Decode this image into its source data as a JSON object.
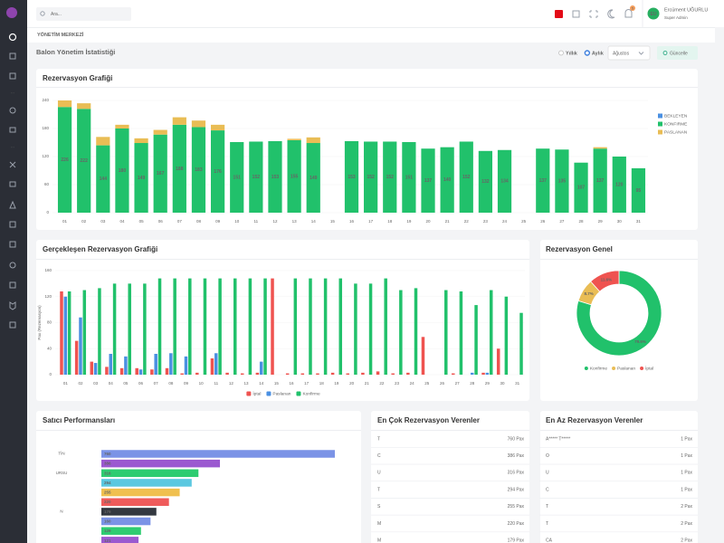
{
  "header": {
    "search_placeholder": "Ara...",
    "notification_count": 5,
    "user_initials": "EU",
    "user_name": "Ercüment UĞURLU",
    "user_role": "Super Admin"
  },
  "breadcrumb": "YÖNETİM MERKEZİ",
  "page_title": "Balon Yönetim İstatistiği",
  "filters": {
    "options": [
      "Yıllık",
      "Aylık"
    ],
    "selected_index": 1,
    "month": "Ağustos",
    "button": "Güncelle"
  },
  "chart_data": [
    {
      "type": "bar",
      "stacked": true,
      "title": "Rezervasyon Grafiği",
      "grid": true,
      "legend": "right",
      "categories": [
        "01",
        "02",
        "03",
        "04",
        "05",
        "06",
        "07",
        "08",
        "09",
        "10",
        "11",
        "12",
        "13",
        "14",
        "15",
        "16",
        "17",
        "18",
        "19",
        "20",
        "21",
        "22",
        "23",
        "24",
        "25",
        "26",
        "27",
        "28",
        "29",
        "30",
        "31"
      ],
      "ylim": [
        0,
        240
      ],
      "yticks": [
        0,
        60,
        120,
        180,
        240
      ],
      "series": [
        {
          "name": "BEKLEYEN",
          "color": "#4a90e2",
          "values": [
            0,
            0,
            0,
            0,
            0,
            0,
            0,
            0,
            0,
            0,
            0,
            0,
            0,
            0,
            0,
            0,
            0,
            0,
            0,
            0,
            0,
            0,
            0,
            0,
            0,
            0,
            0,
            0,
            0,
            0,
            0
          ]
        },
        {
          "name": "KONFIRME",
          "color": "#21c16b",
          "show_labels": true,
          "values": [
            226,
            222,
            144,
            180,
            149,
            167,
            188,
            183,
            176,
            151,
            152,
            153,
            155,
            149,
            null,
            153,
            152,
            152,
            151,
            137,
            140,
            152,
            132,
            134,
            null,
            137,
            135,
            107,
            137,
            120,
            95
          ]
        },
        {
          "name": "PASLANAN",
          "color": "#e9bd55",
          "values": [
            14,
            12,
            18,
            8,
            10,
            10,
            16,
            14,
            12,
            0,
            0,
            0,
            3,
            12,
            0,
            0,
            0,
            0,
            0,
            0,
            0,
            0,
            0,
            0,
            0,
            0,
            0,
            0,
            3,
            0,
            0
          ]
        }
      ]
    },
    {
      "type": "bar",
      "stacked": false,
      "title": "Gerçekleşen Rezervasyon Grafiği",
      "y_label": "Pax (Rezervasyon)",
      "grid": true,
      "legend": "bottom",
      "categories": [
        "01",
        "02",
        "03",
        "04",
        "05",
        "06",
        "07",
        "08",
        "09",
        "10",
        "11",
        "12",
        "13",
        "14",
        "15",
        "16",
        "17",
        "18",
        "19",
        "20",
        "21",
        "22",
        "23",
        "24",
        "25",
        "26",
        "27",
        "28",
        "29",
        "30",
        "31"
      ],
      "ylim": [
        0,
        160
      ],
      "yticks": [
        0,
        40,
        80,
        120,
        160
      ],
      "series": [
        {
          "name": "İptal",
          "color": "#ef5350",
          "values": [
            128,
            52,
            20,
            12,
            10,
            10,
            8,
            10,
            2,
            3,
            25,
            3,
            2,
            3,
            148,
            2,
            2,
            2,
            3,
            2,
            3,
            5,
            2,
            3,
            58,
            0,
            2,
            0,
            3,
            40,
            0
          ]
        },
        {
          "name": "Paslanan",
          "color": "#4a90e2",
          "values": [
            120,
            88,
            18,
            32,
            28,
            8,
            32,
            33,
            28,
            0,
            33,
            0,
            0,
            20,
            0,
            0,
            0,
            0,
            0,
            0,
            0,
            0,
            0,
            0,
            0,
            0,
            0,
            3,
            3,
            0,
            0
          ]
        },
        {
          "name": "Konfirme",
          "color": "#21c16b",
          "values": [
            128,
            130,
            133,
            140,
            140,
            140,
            148,
            148,
            148,
            148,
            148,
            148,
            148,
            148,
            0,
            148,
            148,
            148,
            148,
            140,
            140,
            148,
            130,
            133,
            0,
            130,
            128,
            107,
            130,
            120,
            95
          ]
        }
      ]
    },
    {
      "type": "donut",
      "title": "Rezervasyon Genel",
      "legend": "bottom",
      "categories": [
        "Konfirme",
        "Paslanan",
        "İptal"
      ],
      "values": [
        79.6,
        8.7,
        11.6
      ],
      "value_labels": [
        "79.6%",
        "8.7%",
        "11.6%"
      ],
      "colors": [
        "#21c16b",
        "#e9bd55",
        "#ef5350"
      ]
    },
    {
      "type": "barh",
      "title": "Satıcı Performansları",
      "categories": [
        "TİN",
        null,
        "URSU",
        null,
        null,
        null,
        "N",
        null,
        null,
        null
      ],
      "values": [
        760,
        386,
        316,
        294,
        255,
        220,
        179,
        160,
        129,
        121
      ],
      "colors": [
        "#7b93e6",
        "#9b59d0",
        "#2ecc71",
        "#5bc8e0",
        "#f0c04f",
        "#ef5b5b",
        "#333840",
        "#7b93e6",
        "#2ecc71",
        "#9b59d0"
      ]
    }
  ],
  "top_list": {
    "title": "En Çok Rezervasyon Verenler",
    "rows": [
      [
        "T",
        "760 Pax"
      ],
      [
        "C",
        "386 Pax"
      ],
      [
        "U",
        "316 Pax"
      ],
      [
        "T",
        "294 Pax"
      ],
      [
        "S",
        "255 Pax"
      ],
      [
        "M",
        "220 Pax"
      ],
      [
        "M",
        "179 Pax"
      ]
    ]
  },
  "bottom_list": {
    "title": "En Az Rezervasyon Verenler",
    "rows": [
      [
        "A***** T*****",
        "1 Pax"
      ],
      [
        "O",
        "1 Pax"
      ],
      [
        "U",
        "1 Pax"
      ],
      [
        "C",
        "1 Pax"
      ],
      [
        "T",
        "2 Pax"
      ],
      [
        "T",
        "2 Pax"
      ],
      [
        "CA",
        "2 Pax"
      ]
    ]
  }
}
